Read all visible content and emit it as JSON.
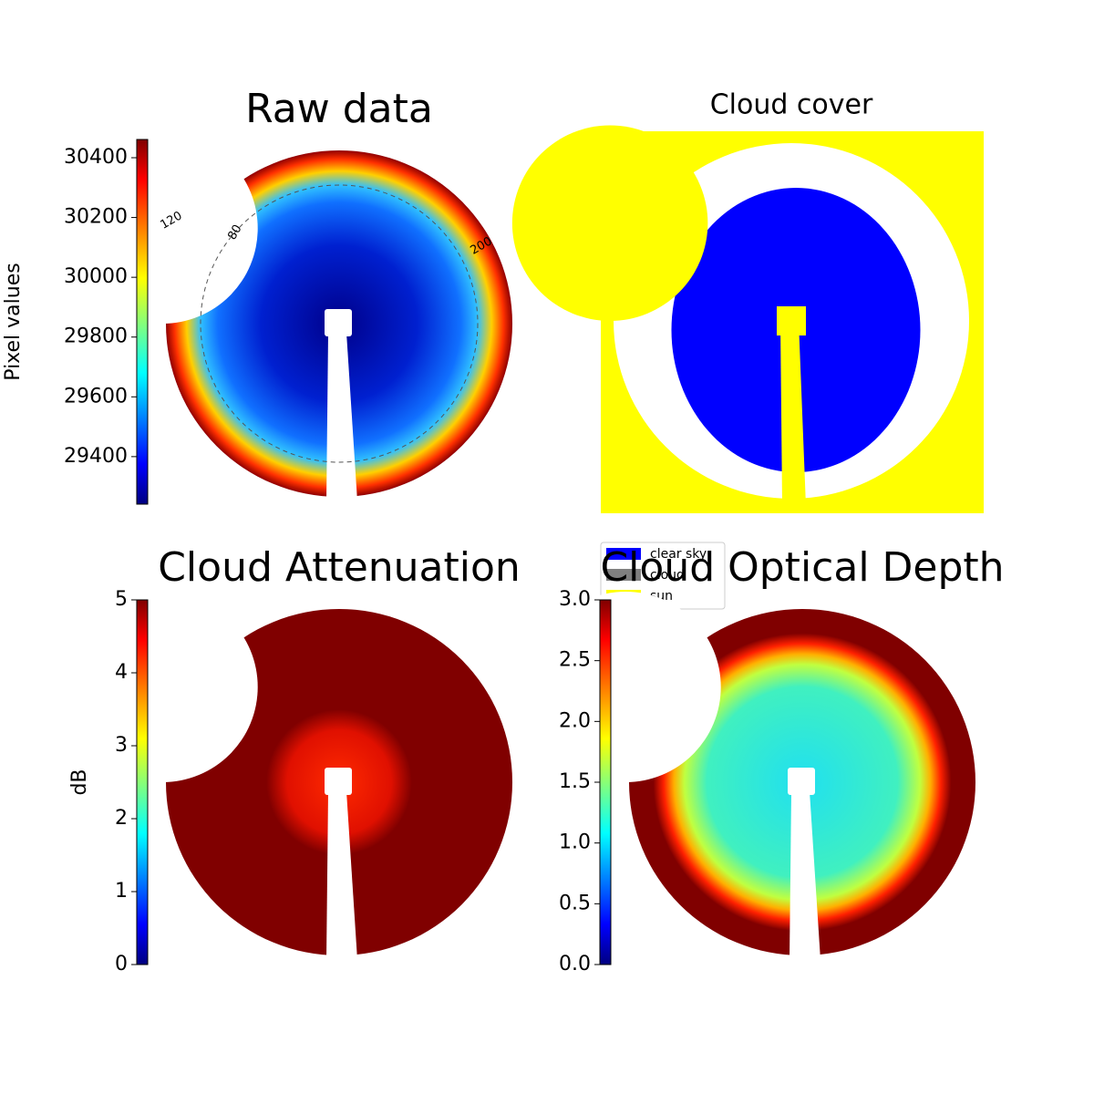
{
  "chart_data": [
    {
      "type": "image",
      "title": "Raw data",
      "colorbar_label": "Pixel values",
      "colormap": "jet",
      "clim": [
        29241,
        30461
      ],
      "cticks": [
        29400,
        29600,
        29800,
        30000,
        30200,
        30400
      ],
      "annotations": [
        "120",
        "80",
        "200"
      ]
    },
    {
      "type": "image",
      "title": "Cloud cover",
      "series": [
        {
          "name": "clear sky",
          "color": "#0000ff"
        },
        {
          "name": "cloud",
          "color": "#808080"
        },
        {
          "name": "sun",
          "color": "#ffff00"
        }
      ]
    },
    {
      "type": "image",
      "title": "Cloud Attenuation",
      "colorbar_label": "dB",
      "colormap": "jet",
      "clim": [
        0,
        5
      ],
      "cticks": [
        0,
        1,
        2,
        3,
        4,
        5
      ]
    },
    {
      "type": "image",
      "title": "Cloud Optical Depth",
      "colormap": "jet",
      "clim": [
        0,
        3
      ],
      "cticks": [
        {
          "value": 0,
          "label": "0.0"
        },
        {
          "value": 0.5,
          "label": "0.5"
        },
        {
          "value": 1,
          "label": "1.0"
        },
        {
          "value": 1.5,
          "label": "1.5"
        },
        {
          "value": 2,
          "label": "2.0"
        },
        {
          "value": 2.5,
          "label": "2.5"
        },
        {
          "value": 3,
          "label": "3.0"
        }
      ]
    }
  ]
}
